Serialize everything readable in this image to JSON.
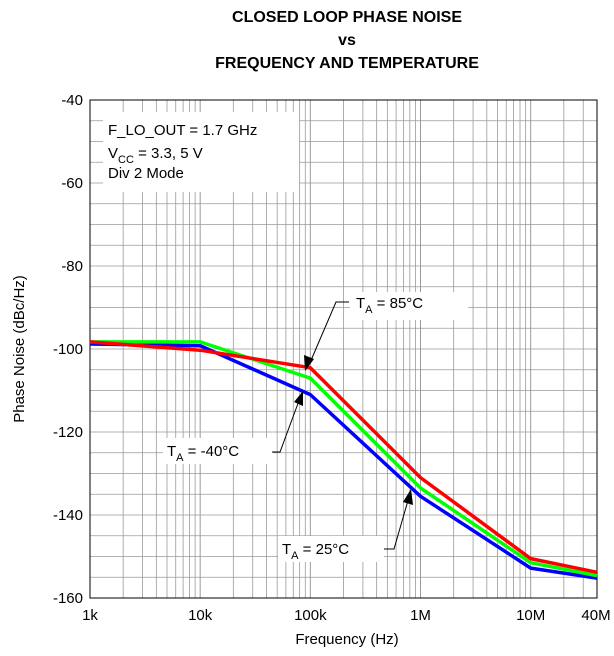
{
  "chart_data": {
    "type": "line",
    "title": [
      "CLOSED LOOP PHASE NOISE",
      "vs",
      "FREQUENCY AND TEMPERATURE"
    ],
    "xlabel": "Frequency (Hz)",
    "ylabel": "Phase Noise (dBc/Hz)",
    "x_scale": "log",
    "xlim": [
      1000,
      40000000
    ],
    "ylim": [
      -160,
      -40
    ],
    "x_ticks": [
      {
        "value": 1000,
        "label": "1k"
      },
      {
        "value": 10000,
        "label": "10k"
      },
      {
        "value": 100000,
        "label": "100k"
      },
      {
        "value": 1000000,
        "label": "1M"
      },
      {
        "value": 10000000,
        "label": "10M"
      },
      {
        "value": 40000000,
        "label": "40M"
      }
    ],
    "y_ticks": [
      {
        "value": -40,
        "label": "-40"
      },
      {
        "value": -60,
        "label": "-60"
      },
      {
        "value": -80,
        "label": "-80"
      },
      {
        "value": -100,
        "label": "-100"
      },
      {
        "value": -120,
        "label": "-120"
      },
      {
        "value": -140,
        "label": "-140"
      },
      {
        "value": -160,
        "label": "-160"
      }
    ],
    "grid": true,
    "conditions": {
      "line1": "F_LO_OUT = 1.7 GHz",
      "line2_main": "V",
      "line2_sub": "CC",
      "line2_rest": " = 3.3, 5 V",
      "line3": "Div 2 Mode"
    },
    "series": [
      {
        "name": "T_A = -40°C",
        "color": "#0000ff",
        "x": [
          1000,
          10000,
          100000,
          1000000,
          10000000,
          40000000
        ],
        "y": [
          -98.8,
          -99.2,
          -111,
          -135.5,
          -152.8,
          -155.2
        ]
      },
      {
        "name": "T_A = 25°C",
        "color": "#00ff00",
        "x": [
          1000,
          10000,
          100000,
          1000000,
          10000000,
          40000000
        ],
        "y": [
          -98.3,
          -98.3,
          -107,
          -133.5,
          -151.5,
          -154.6
        ]
      },
      {
        "name": "T_A = 85°C",
        "color": "#ff0000",
        "x": [
          1000,
          10000,
          100000,
          1000000,
          10000000,
          40000000
        ],
        "y": [
          -98.3,
          -100.3,
          -104.5,
          -131,
          -150.5,
          -153.8
        ]
      }
    ],
    "annotations": [
      {
        "series": "T_A = 85°C",
        "main": "T",
        "sub": "A",
        "rest": " = 85°C",
        "point": [
          100000,
          -104.5
        ]
      },
      {
        "series": "T_A = -40°C",
        "main": "T",
        "sub": "A",
        "rest": " = -40°C",
        "point": [
          100000,
          -111
        ]
      },
      {
        "series": "T_A = 25°C",
        "main": "T",
        "sub": "A",
        "rest": " = 25°C",
        "point": [
          1000000,
          -134.2
        ]
      }
    ]
  }
}
